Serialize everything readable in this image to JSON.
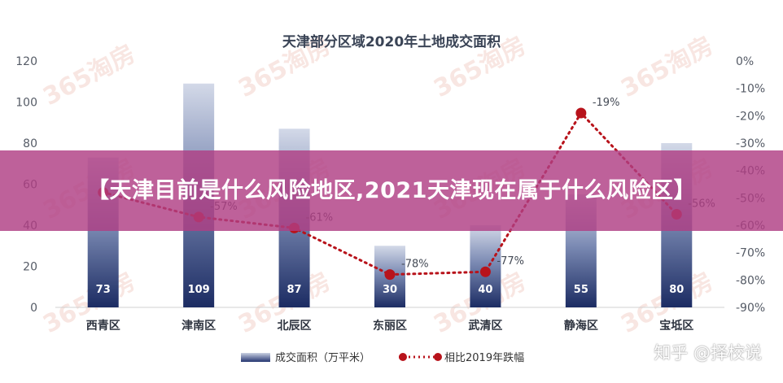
{
  "chart_data": {
    "type": "bar+line",
    "title": "天津部分区域2020年土地成交面积",
    "categories": [
      "西青区",
      "津南区",
      "北辰区",
      "东丽区",
      "武清区",
      "静海区",
      "宝坻区"
    ],
    "series": [
      {
        "name": "成交面积（万平米）",
        "type": "bar",
        "axis": "left",
        "values": [
          73,
          109,
          87,
          30,
          40,
          55,
          80
        ],
        "labels": [
          "73",
          "109",
          "87",
          "30",
          "40",
          "55",
          "80"
        ]
      },
      {
        "name": "相比2019年跌幅",
        "type": "line",
        "axis": "right",
        "values": [
          -48,
          -57,
          -61,
          -78,
          -77,
          -19,
          -56
        ],
        "labels": [
          "",
          "-57%",
          "-61%",
          "-78%",
          "-77%",
          "-19%",
          "-56%"
        ]
      }
    ],
    "y_left": {
      "min": 0,
      "max": 120,
      "ticks": [
        "0",
        "20",
        "40",
        "60",
        "80",
        "100",
        "120"
      ]
    },
    "y_right": {
      "min": -90,
      "max": 0,
      "ticks": [
        "0%",
        "-10%",
        "-20%",
        "-30%",
        "-40%",
        "-50%",
        "-60%",
        "-70%",
        "-80%",
        "-90%"
      ]
    },
    "legend_position": "bottom",
    "colors": {
      "bar_top": "#c5cde0",
      "bar_bottom": "#1f3066",
      "line": "#b8131b",
      "banner": "#b03e84"
    }
  },
  "overlay": {
    "banner_text": "【天津目前是什么风险地区,2021天津现在属于什么风险区】",
    "credit": "知乎 @择校说"
  },
  "watermark": "365淘房"
}
